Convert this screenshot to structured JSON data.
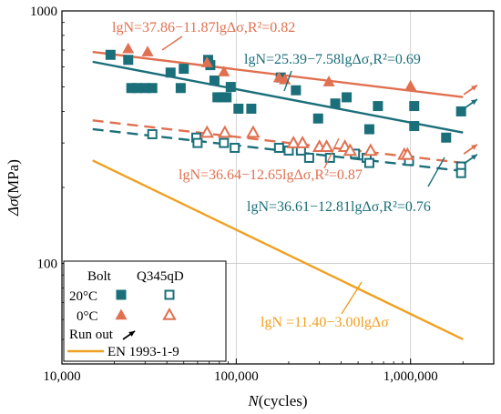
{
  "chart_data": {
    "type": "scatter",
    "xlabel_italic": "N",
    "xlabel_rest": "(cycles)",
    "ylabel_italic": "Δσ",
    "ylabel_rest": "(MPa)",
    "x_scale": "log",
    "y_scale": "log",
    "xlim": [
      10000,
      3000000
    ],
    "ylim": [
      40,
      1000
    ],
    "x_ticks": [
      {
        "value": 10000,
        "label": "10,000"
      },
      {
        "value": 100000,
        "label": "100,000"
      },
      {
        "value": 1000000,
        "label": "1,000,000"
      }
    ],
    "y_ticks": [
      {
        "value": 100,
        "label": "100"
      },
      {
        "value": 1000,
        "label": "1000"
      }
    ],
    "grid": true,
    "colors": {
      "teal": "#1b6f7a",
      "orange": "#e07050",
      "gold": "#f0a020"
    },
    "series": [
      {
        "key": "bolt_20",
        "marker": "square-filled",
        "color": "#1b6f7a",
        "points": [
          [
            19000,
            670
          ],
          [
            24000,
            640
          ],
          [
            25000,
            495
          ],
          [
            27000,
            495
          ],
          [
            30000,
            495
          ],
          [
            33000,
            495
          ],
          [
            42000,
            570
          ],
          [
            48000,
            495
          ],
          [
            50000,
            590
          ],
          [
            69000,
            640
          ],
          [
            71000,
            610
          ],
          [
            75000,
            530
          ],
          [
            78000,
            455
          ],
          [
            83000,
            455
          ],
          [
            88000,
            455
          ],
          [
            93000,
            500
          ],
          [
            103000,
            410
          ],
          [
            122000,
            410
          ],
          [
            180000,
            545
          ],
          [
            220000,
            485
          ],
          [
            295000,
            375
          ],
          [
            370000,
            430
          ],
          [
            430000,
            455
          ],
          [
            580000,
            340
          ],
          [
            650000,
            420
          ],
          [
            1050000,
            350
          ],
          [
            1050000,
            420
          ],
          [
            1600000,
            315
          ],
          [
            1950000,
            400
          ]
        ]
      },
      {
        "key": "bolt_0",
        "marker": "triangle-filled",
        "color": "#e07050",
        "points": [
          [
            24000,
            710
          ],
          [
            31000,
            690
          ],
          [
            68000,
            625
          ],
          [
            85000,
            575
          ],
          [
            176000,
            545
          ],
          [
            190000,
            535
          ],
          [
            340000,
            525
          ],
          [
            1000000,
            505
          ]
        ]
      },
      {
        "key": "q345_20",
        "marker": "square-open",
        "color": "#1b6f7a",
        "points": [
          [
            33000,
            325
          ],
          [
            59000,
            315
          ],
          [
            60000,
            300
          ],
          [
            85000,
            300
          ],
          [
            98000,
            287
          ],
          [
            176000,
            287
          ],
          [
            200000,
            280
          ],
          [
            235000,
            280
          ],
          [
            262000,
            262
          ],
          [
            345000,
            262
          ],
          [
            480000,
            272
          ],
          [
            560000,
            262
          ],
          [
            580000,
            250
          ],
          [
            980000,
            255
          ],
          [
            1950000,
            242
          ],
          [
            1950000,
            228
          ]
        ]
      },
      {
        "key": "q345_0",
        "marker": "triangle-open",
        "color": "#e07050",
        "points": [
          [
            68000,
            330
          ],
          [
            86000,
            330
          ],
          [
            125000,
            330
          ],
          [
            213000,
            300
          ],
          [
            240000,
            300
          ],
          [
            300000,
            290
          ],
          [
            330000,
            290
          ],
          [
            420000,
            290
          ],
          [
            450000,
            280
          ],
          [
            590000,
            280
          ],
          [
            920000,
            270
          ],
          [
            960000,
            270
          ]
        ]
      }
    ],
    "runouts": [
      {
        "x": 1950000,
        "y": 400,
        "color": "#1b6f7a"
      },
      {
        "x": 1950000,
        "y": 455,
        "color": "#e07050"
      },
      {
        "x": 1950000,
        "y": 242,
        "color": "#1b6f7a"
      },
      {
        "x": 1950000,
        "y": 265,
        "color": "#e07050"
      }
    ],
    "fits": [
      {
        "key": "fit_bolt_0",
        "a": 37.86,
        "b": 11.87,
        "x_range": [
          15000,
          2000000
        ],
        "color": "#e07050",
        "dash": false,
        "label": "lgN=37.86−11.87lgΔσ,R²=0.82"
      },
      {
        "key": "fit_bolt_20",
        "a": 25.39,
        "b": 7.58,
        "x_range": [
          15000,
          2000000
        ],
        "color": "#1b6f7a",
        "dash": false,
        "label": "lgN=25.39−7.58lgΔσ,R²=0.69"
      },
      {
        "key": "fit_q345_0",
        "a": 36.64,
        "b": 12.65,
        "x_range": [
          15000,
          2000000
        ],
        "color": "#e07050",
        "dash": true,
        "label": "lgN=36.64−12.65lgΔσ,R²=0.87"
      },
      {
        "key": "fit_q345_20",
        "a": 36.61,
        "b": 12.81,
        "x_range": [
          15000,
          2000000
        ],
        "color": "#1b6f7a",
        "dash": true,
        "label": "lgN=36.61−12.81lgΔσ,R²=0.76"
      },
      {
        "key": "fit_en",
        "a": 11.4,
        "b": 3.0,
        "x_range": [
          15000,
          2000000
        ],
        "color": "#f0a020",
        "dash": false,
        "label": "lgN =11.40−3.00lgΔσ"
      }
    ],
    "legend": {
      "placement": "bottom-left",
      "col_bolt": "Bolt",
      "col_q345": "Q345qD",
      "row_20": "20°C",
      "row_0": "0°C",
      "run_out": "Run out",
      "en": "EN 1993-1-9"
    }
  }
}
